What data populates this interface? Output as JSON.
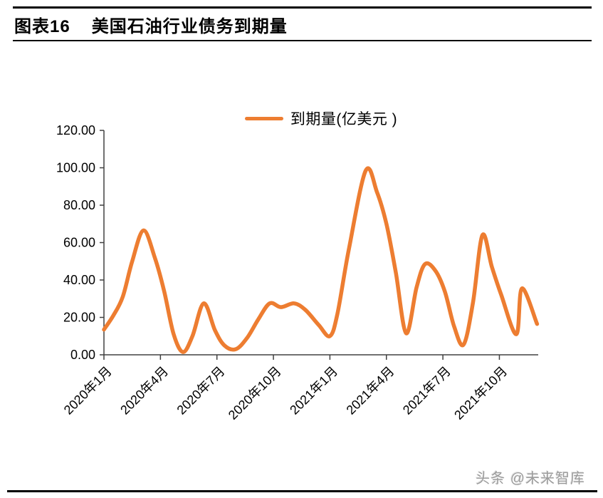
{
  "header": {
    "chart_label": "图表16",
    "title": "美国石油行业债务到期量"
  },
  "watermark": {
    "text": "头条 @未来智库"
  },
  "colors": {
    "series": "#ED7D31",
    "axis": "#404040",
    "text": "#000000",
    "rule": "#000000",
    "watermark": "#9B9B9B",
    "background": "#FFFFFF"
  },
  "chart_data": {
    "type": "line",
    "title": "美国石油行业债务到期量",
    "xlabel": "",
    "ylabel": "",
    "grid": false,
    "legend_position": "top-center",
    "ylim": [
      0,
      120
    ],
    "ytick_step": 20,
    "ytick_labels": [
      "0.00",
      "20.00",
      "40.00",
      "60.00",
      "80.00",
      "100.00",
      "120.00"
    ],
    "x_unit": "months since 2020-01",
    "x_tick_months": [
      0,
      3,
      6,
      9,
      12,
      15,
      18,
      21
    ],
    "x_tick_labels": [
      "2020年1月",
      "2020年4月",
      "2020年7月",
      "2020年10月",
      "2021年1月",
      "2021年4月",
      "2021年7月",
      "2021年10月"
    ],
    "series": [
      {
        "name": "到期量(亿美元 )",
        "x_months": [
          0,
          0.5,
          1,
          1.5,
          2.1,
          2.7,
          3.2,
          3.7,
          4.2,
          4.7,
          5.3,
          5.9,
          6.4,
          7.0,
          7.6,
          8.2,
          8.8,
          9.4,
          10.1,
          10.7,
          11.4,
          12.0,
          12.4,
          13.0,
          13.9,
          14.5,
          15.0,
          15.5,
          16.05,
          16.6,
          17.05,
          17.6,
          18.1,
          18.6,
          19.1,
          19.6,
          20.1,
          20.6,
          21.1,
          21.9,
          22.2,
          23
        ],
        "values": [
          13.5,
          21,
          31,
          50,
          66.5,
          52,
          34,
          11,
          1.5,
          10,
          27.5,
          13,
          5,
          3,
          9,
          19,
          27.5,
          25.5,
          27.5,
          24,
          16,
          10,
          22,
          56,
          98.5,
          87,
          70,
          44,
          11.5,
          36,
          48.5,
          45,
          34,
          15,
          5.5,
          28,
          64,
          47,
          32,
          11,
          35.5,
          16.5
        ]
      }
    ],
    "monthly_estimates": {
      "months": [
        "2020-01",
        "2020-02",
        "2020-03",
        "2020-04",
        "2020-05",
        "2020-06",
        "2020-07",
        "2020-08",
        "2020-09",
        "2020-10",
        "2020-11",
        "2020-12",
        "2021-01",
        "2021-02",
        "2021-03",
        "2021-04",
        "2021-05",
        "2021-06",
        "2021-07",
        "2021-08",
        "2021-09",
        "2021-10",
        "2021-11",
        "2021-12"
      ],
      "values": [
        14,
        31,
        67,
        34,
        2,
        27,
        5,
        3,
        19,
        28,
        26,
        24,
        10,
        56,
        99,
        70,
        12,
        48,
        34,
        6,
        64,
        32,
        11,
        16
      ]
    }
  }
}
